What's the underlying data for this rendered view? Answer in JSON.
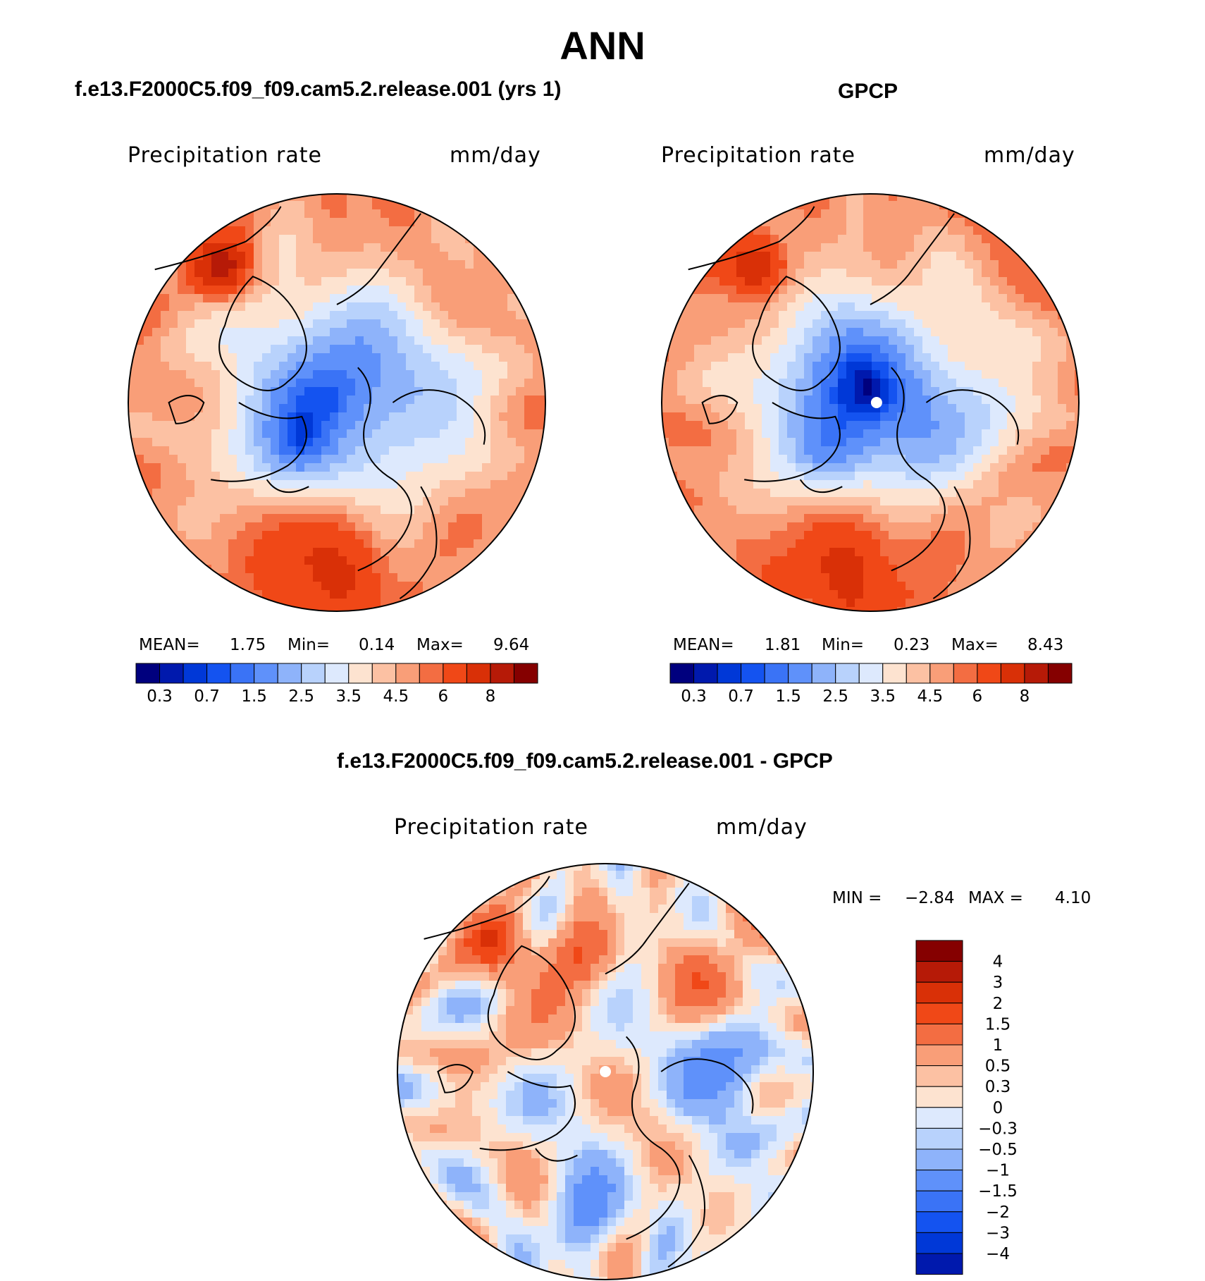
{
  "figure": {
    "title": "ANN",
    "bottom_title": "f.e13.F2000C5.f09_f09.cam5.2.release.001 - GPCP"
  },
  "colors": {
    "abs_scale": [
      "#00007e",
      "#0019ad",
      "#0038d7",
      "#1453f0",
      "#3a73f6",
      "#5f91fa",
      "#8eb3fa",
      "#b8d2fc",
      "#dde9fd",
      "#fde3d0",
      "#fcc1a3",
      "#f99e78",
      "#f36d42",
      "#f04817",
      "#d93007",
      "#b61a07",
      "#850000"
    ],
    "diff_scale": [
      "#00007e",
      "#0019ad",
      "#0038d7",
      "#1453f0",
      "#3a73f6",
      "#5f91fa",
      "#8eb3fa",
      "#b8d2fc",
      "#dde9fd",
      "#fde3d0",
      "#fcc1a3",
      "#f99e78",
      "#f36d42",
      "#f04817",
      "#d93007",
      "#b61a07",
      "#850000"
    ]
  },
  "chart_data": [
    {
      "type": "heatmap",
      "projection": "polar-stereographic-north",
      "title": "f.e13.F2000C5.f09_f09.cam5.2.release.001 (yrs 1)",
      "variable_label": "Precipitation rate",
      "units": "mm/day",
      "stats": {
        "mean_label": "MEAN=",
        "mean": "1.75",
        "min_label": "Min=",
        "min": "0.14",
        "max_label": "Max=",
        "max": "9.64"
      },
      "colorbar_ticks": [
        "0.3",
        "0.7",
        "1.5",
        "2.5",
        "3.5",
        "4.5",
        "6",
        "8"
      ],
      "colorbar_levels": [
        0.2,
        0.3,
        0.5,
        0.7,
        1,
        1.5,
        2,
        2.5,
        3,
        3.5,
        4,
        4.5,
        5,
        6,
        7,
        8
      ]
    },
    {
      "type": "heatmap",
      "projection": "polar-stereographic-north",
      "title": "GPCP",
      "variable_label": "Precipitation rate",
      "units": "mm/day",
      "stats": {
        "mean_label": "MEAN=",
        "mean": "1.81",
        "min_label": "Min=",
        "min": "0.23",
        "max_label": "Max=",
        "max": "8.43"
      },
      "colorbar_ticks": [
        "0.3",
        "0.7",
        "1.5",
        "2.5",
        "3.5",
        "4.5",
        "6",
        "8"
      ],
      "colorbar_levels": [
        0.2,
        0.3,
        0.5,
        0.7,
        1,
        1.5,
        2,
        2.5,
        3,
        3.5,
        4,
        4.5,
        5,
        6,
        7,
        8
      ]
    },
    {
      "type": "heatmap",
      "projection": "polar-stereographic-north",
      "title": "f.e13.F2000C5.f09_f09.cam5.2.release.001 - GPCP",
      "variable_label": "Precipitation rate",
      "units": "mm/day",
      "stats": {
        "min_label": "MIN =",
        "min": "−2.84",
        "max_label": "MAX =",
        "max": "4.10"
      },
      "colorbar_ticks": [
        "4",
        "3",
        "2",
        "1.5",
        "1",
        "0.5",
        "0.3",
        "0",
        "−0.3",
        "−0.5",
        "−1",
        "−1.5",
        "−2",
        "−3",
        "−4"
      ],
      "colorbar_levels": [
        4,
        3,
        2,
        1.5,
        1,
        0.5,
        0.3,
        0,
        -0.3,
        -0.5,
        -1,
        -1.5,
        -2,
        -3,
        -4
      ]
    }
  ]
}
